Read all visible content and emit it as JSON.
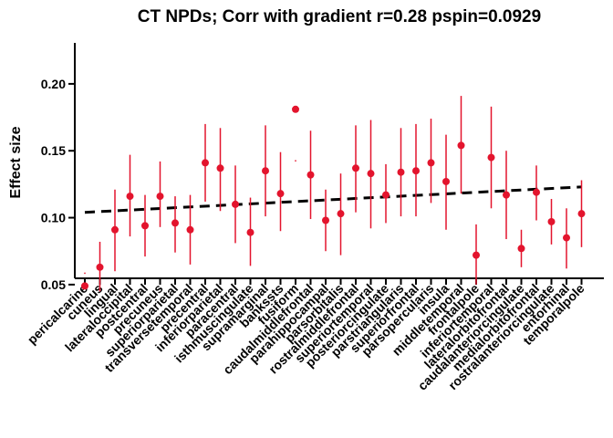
{
  "chart_data": {
    "type": "scatter",
    "title": "CT NPDs; Corr with gradient r=0.28 pspin=0.0929",
    "xlabel": "",
    "ylabel": "Effect size",
    "ylim": [
      0.03,
      0.21
    ],
    "yticks": [
      0.05,
      0.1,
      0.15,
      0.2
    ],
    "ytick_labels": [
      "0.05",
      "0.10",
      "0.15",
      "0.20"
    ],
    "color": "#e3142d",
    "trend_color": "#000000",
    "trendline": {
      "start": 0.104,
      "end": 0.123
    },
    "categories": [
      "pericalcarine",
      "cuneus",
      "lingual",
      "lateraloccipital",
      "postcentral",
      "precuneus",
      "superiorparietal",
      "transversetemporal",
      "precentral",
      "inferiorparietal",
      "paracentral",
      "isthmuscingulate",
      "supramarginal",
      "bankssts",
      "fusiform",
      "caudalmiddlefrontal",
      "parahippocampal",
      "parsorbitalis",
      "rostralmiddlefrontal",
      "superiortemporal",
      "posteriorcingulate",
      "parstriangularis",
      "superiorfrontal",
      "parsopercularis",
      "insula",
      "middletemporal",
      "frontalpole",
      "inferiortemporal",
      "lateralorbitofrontal",
      "caudalanteriorcingulate",
      "medialorbitofrontal",
      "rostralanteriorcingulate",
      "entorhinal",
      "temporalpole"
    ],
    "series": [
      {
        "name": "Effect size",
        "values": [
          0.049,
          0.063,
          0.091,
          0.116,
          0.094,
          0.116,
          0.096,
          0.091,
          0.141,
          0.137,
          0.11,
          0.089,
          0.135,
          0.118,
          0.181,
          0.132,
          0.098,
          0.103,
          0.137,
          0.133,
          0.117,
          0.134,
          0.135,
          0.141,
          0.127,
          0.154,
          0.072,
          0.145,
          0.117,
          0.077,
          0.119,
          0.097,
          0.085,
          0.103
        ],
        "lower": [
          0.058,
          0.045,
          0.06,
          0.086,
          0.071,
          0.093,
          0.074,
          0.065,
          0.112,
          0.105,
          0.081,
          0.064,
          0.101,
          0.09,
          0.142,
          0.099,
          0.075,
          0.072,
          0.104,
          0.092,
          0.096,
          0.101,
          0.101,
          0.111,
          0.091,
          0.118,
          0.05,
          0.107,
          0.084,
          0.063,
          0.098,
          0.08,
          0.062,
          0.078
        ],
        "upper": [
          0.059,
          0.082,
          0.121,
          0.147,
          0.117,
          0.142,
          0.116,
          0.117,
          0.17,
          0.167,
          0.139,
          0.115,
          0.169,
          0.149,
          0.143,
          0.165,
          0.121,
          0.133,
          0.169,
          0.173,
          0.14,
          0.167,
          0.17,
          0.174,
          0.162,
          0.191,
          0.095,
          0.183,
          0.15,
          0.091,
          0.139,
          0.114,
          0.107,
          0.128
        ]
      }
    ]
  }
}
